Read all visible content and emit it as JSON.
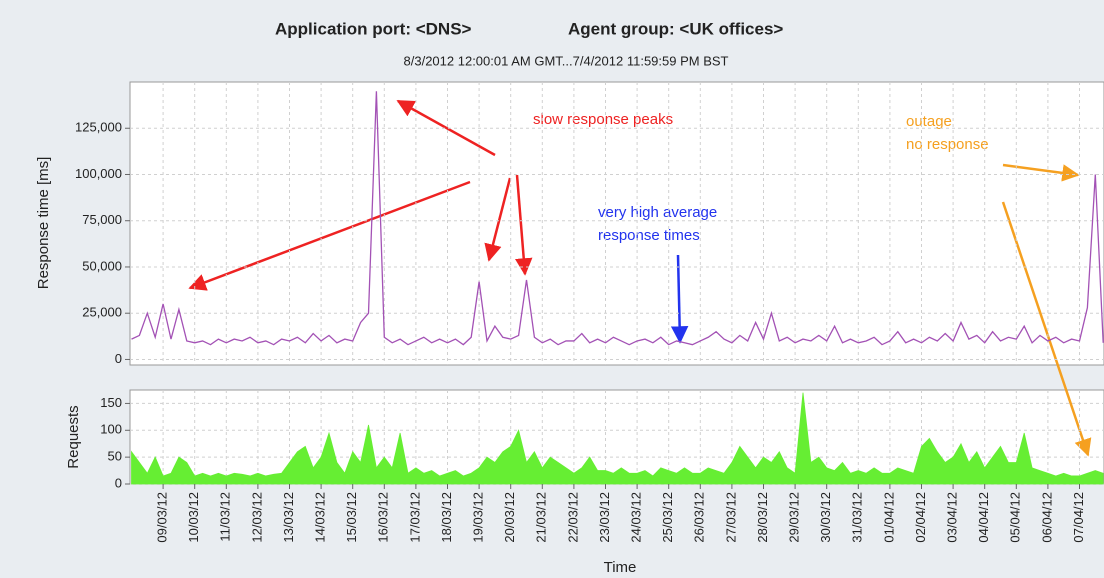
{
  "chart_data": [
    {
      "type": "line",
      "titles": [
        "Application port: <DNS>",
        "Agent group: <UK offices>"
      ],
      "subtitle": "8/3/2012 12:00:01 AM GMT...7/4/2012 11:59:59 PM BST",
      "ylabel": "Response time [ms]",
      "ylim": [
        -3000,
        150000
      ],
      "yticks": [
        0,
        {
          "value": 25000,
          "label": "25,000"
        },
        {
          "value": 50000,
          "label": "50,000"
        },
        {
          "value": 75000,
          "label": "75,000"
        },
        {
          "value": 100000,
          "label": "100,000"
        },
        {
          "value": 125000,
          "label": "125,000"
        }
      ],
      "grid": true,
      "series": [
        {
          "name": "Response time",
          "color": "#a352b5",
          "values": [
            11000,
            13000,
            25000,
            12000,
            30000,
            11000,
            27000,
            10000,
            9000,
            10000,
            8000,
            11000,
            9000,
            11000,
            10000,
            12000,
            9000,
            10000,
            8000,
            11000,
            10000,
            12000,
            9000,
            14000,
            10000,
            13000,
            9000,
            11000,
            10000,
            20000,
            25000,
            145000,
            12000,
            9000,
            11000,
            8000,
            10000,
            12000,
            9000,
            11000,
            9000,
            11000,
            8000,
            12000,
            42000,
            10000,
            18000,
            12000,
            11000,
            13000,
            43000,
            12000,
            9000,
            11000,
            8000,
            10000,
            10000,
            14000,
            9000,
            11000,
            9000,
            12000,
            10000,
            8000,
            10000,
            11000,
            9000,
            12000,
            8000,
            10000,
            9000,
            8000,
            10000,
            12000,
            15000,
            11000,
            9000,
            13000,
            10000,
            20000,
            11000,
            25000,
            10000,
            12000,
            9000,
            11000,
            10000,
            13000,
            10000,
            18000,
            9000,
            11000,
            9000,
            10000,
            12000,
            8000,
            10000,
            15000,
            9000,
            11000,
            9000,
            12000,
            10000,
            14000,
            10000,
            20000,
            11000,
            13000,
            9000,
            15000,
            10000,
            12000,
            11000,
            18000,
            9000,
            13000,
            10000,
            12000,
            9000,
            11000,
            10000,
            28000,
            100000,
            9000
          ]
        }
      ],
      "annotations": [
        {
          "lines": [
            "slow response peaks"
          ],
          "color": "#ee2222"
        },
        {
          "lines": [
            "very high average",
            "response times"
          ],
          "color": "#2233ee"
        },
        {
          "lines": [
            "outage",
            "no response"
          ],
          "color": "#f5a020"
        }
      ]
    },
    {
      "type": "area",
      "ylabel": "Requests",
      "xlabel": "Time",
      "ylim": [
        0,
        175
      ],
      "yticks": [
        0,
        50,
        100,
        150
      ],
      "grid": true,
      "categories": [
        null,
        null,
        null,
        null,
        "09/03/12",
        null,
        null,
        null,
        "10/03/12",
        null,
        null,
        null,
        "11/03/12",
        null,
        null,
        null,
        "12/03/12",
        null,
        null,
        null,
        "13/03/12",
        null,
        null,
        null,
        "14/03/12",
        null,
        null,
        null,
        "15/03/12",
        null,
        null,
        null,
        "16/03/12",
        null,
        null,
        null,
        "17/03/12",
        null,
        null,
        null,
        "18/03/12",
        null,
        null,
        null,
        "19/03/12",
        null,
        null,
        null,
        "20/03/12",
        null,
        null,
        null,
        "21/03/12",
        null,
        null,
        null,
        "22/03/12",
        null,
        null,
        null,
        "23/03/12",
        null,
        null,
        null,
        "24/03/12",
        null,
        null,
        null,
        "25/03/12",
        null,
        null,
        null,
        "26/03/12",
        null,
        null,
        null,
        "27/03/12",
        null,
        null,
        null,
        "28/03/12",
        null,
        null,
        null,
        "29/03/12",
        null,
        null,
        null,
        "30/03/12",
        null,
        null,
        null,
        "31/03/12",
        null,
        null,
        null,
        "01/04/12",
        null,
        null,
        null,
        "02/04/12",
        null,
        null,
        null,
        "03/04/12",
        null,
        null,
        null,
        "04/04/12",
        null,
        null,
        null,
        "05/04/12",
        null,
        null,
        null,
        "06/04/12",
        null,
        null,
        null,
        "07/04/12",
        null,
        null,
        null
      ],
      "series": [
        {
          "name": "Requests",
          "color": "#66ee33",
          "values": [
            60,
            40,
            20,
            50,
            15,
            20,
            50,
            40,
            15,
            20,
            15,
            20,
            15,
            20,
            18,
            15,
            20,
            15,
            18,
            20,
            40,
            60,
            70,
            30,
            50,
            95,
            40,
            20,
            60,
            40,
            110,
            30,
            50,
            30,
            95,
            20,
            30,
            20,
            25,
            15,
            20,
            25,
            15,
            20,
            30,
            50,
            40,
            60,
            70,
            100,
            40,
            60,
            30,
            50,
            40,
            30,
            20,
            30,
            50,
            25,
            25,
            20,
            30,
            20,
            20,
            25,
            15,
            30,
            25,
            20,
            30,
            20,
            20,
            30,
            25,
            20,
            40,
            70,
            50,
            30,
            50,
            40,
            60,
            30,
            20,
            170,
            40,
            50,
            30,
            25,
            40,
            20,
            25,
            20,
            30,
            20,
            20,
            30,
            25,
            20,
            70,
            85,
            60,
            40,
            50,
            75,
            40,
            60,
            30,
            50,
            70,
            40,
            40,
            95,
            30,
            25,
            20,
            15,
            20,
            15,
            15,
            20,
            25,
            20
          ]
        }
      ]
    }
  ]
}
